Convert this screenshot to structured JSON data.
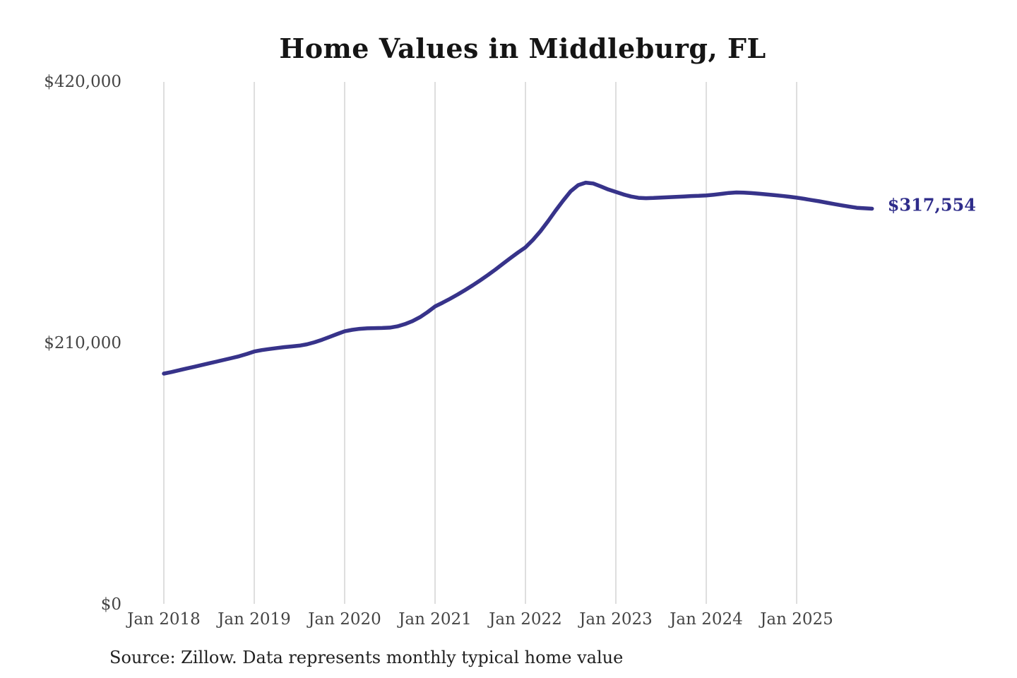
{
  "title": "Home Values in Middleburg, FL",
  "source_note": "Source: Zillow. Data represents monthly typical home value",
  "colors": {
    "background": "#ffffff",
    "line": "#37338a",
    "end_label": "#2e2c8a",
    "grid": "#cccccc",
    "axis_text": "#454545",
    "title_text": "#151515",
    "source_text": "#222222"
  },
  "chart_data": {
    "type": "line",
    "title": "Home Values in Middleburg, FL",
    "xlabel": "",
    "ylabel": "",
    "x_tick_labels": [
      "Jan 2018",
      "Jan 2019",
      "Jan 2020",
      "Jan 2021",
      "Jan 2022",
      "Jan 2023",
      "Jan 2024",
      "Jan 2025"
    ],
    "y_tick_labels": [
      "$0",
      "$210,000",
      "$420,000"
    ],
    "y_ticks": [
      0,
      210000,
      420000
    ],
    "ylim": [
      0,
      420000
    ],
    "grid": "vertical-only",
    "legend": "none",
    "latest_value": 317554,
    "latest_value_label": "$317,554",
    "series": [
      {
        "name": "Typical home value",
        "months": [
          "2018-01",
          "2018-02",
          "2018-03",
          "2018-04",
          "2018-05",
          "2018-06",
          "2018-07",
          "2018-08",
          "2018-09",
          "2018-10",
          "2018-11",
          "2018-12",
          "2019-01",
          "2019-02",
          "2019-03",
          "2019-04",
          "2019-05",
          "2019-06",
          "2019-07",
          "2019-08",
          "2019-09",
          "2019-10",
          "2019-11",
          "2019-12",
          "2020-01",
          "2020-02",
          "2020-03",
          "2020-04",
          "2020-05",
          "2020-06",
          "2020-07",
          "2020-08",
          "2020-09",
          "2020-10",
          "2020-11",
          "2020-12",
          "2021-01",
          "2021-02",
          "2021-03",
          "2021-04",
          "2021-05",
          "2021-06",
          "2021-07",
          "2021-08",
          "2021-09",
          "2021-10",
          "2021-11",
          "2021-12",
          "2022-01",
          "2022-02",
          "2022-03",
          "2022-04",
          "2022-05",
          "2022-06",
          "2022-07",
          "2022-08",
          "2022-09",
          "2022-10",
          "2022-11",
          "2022-12",
          "2023-01",
          "2023-02",
          "2023-03",
          "2023-04",
          "2023-05",
          "2023-06",
          "2023-07",
          "2023-08",
          "2023-09",
          "2023-10",
          "2023-11",
          "2023-12",
          "2024-01",
          "2024-02",
          "2024-03",
          "2024-04",
          "2024-05",
          "2024-06",
          "2024-07",
          "2024-08",
          "2024-09",
          "2024-10",
          "2024-11",
          "2024-12",
          "2025-01",
          "2025-02",
          "2025-03",
          "2025-04",
          "2025-05",
          "2025-06",
          "2025-07",
          "2025-08",
          "2025-09",
          "2025-10",
          "2025-11"
        ],
        "values": [
          185000,
          186300,
          187700,
          189100,
          190500,
          191900,
          193300,
          194700,
          196100,
          197500,
          199000,
          200800,
          202800,
          203900,
          204800,
          205600,
          206300,
          206900,
          207500,
          208600,
          210200,
          212200,
          214500,
          216800,
          219000,
          220200,
          221000,
          221400,
          221600,
          221700,
          222000,
          223000,
          224800,
          227200,
          230400,
          234400,
          239000,
          242000,
          245200,
          248600,
          252200,
          256000,
          260000,
          264200,
          268600,
          273200,
          277900,
          282300,
          286500,
          292500,
          299500,
          307500,
          316000,
          324000,
          331500,
          336500,
          338500,
          337800,
          335500,
          333000,
          331000,
          329000,
          327400,
          326300,
          326000,
          326200,
          326500,
          326800,
          327100,
          327400,
          327700,
          327900,
          328200,
          328800,
          329500,
          330200,
          330600,
          330500,
          330100,
          329600,
          329100,
          328500,
          327900,
          327200,
          326400,
          325500,
          324500,
          323500,
          322400,
          321300,
          320200,
          319200,
          318300,
          317900,
          317554
        ]
      }
    ]
  }
}
